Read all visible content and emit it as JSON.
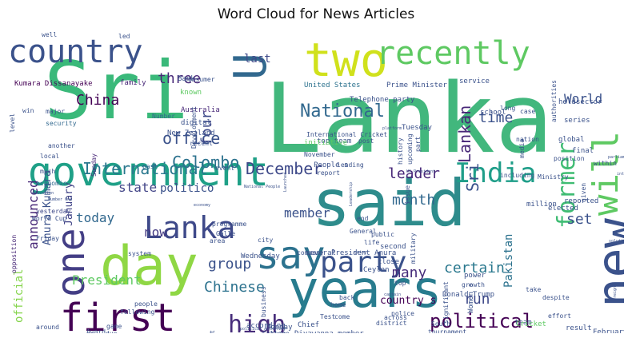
{
  "chart_data": {
    "type": "wordcloud",
    "title": "Word Cloud for News Articles",
    "background": "#ffffff",
    "colormap": "viridis",
    "words": [
      {
        "text": "Sri",
        "size": 100,
        "color": "#3ab97a"
      },
      {
        "text": "Lanka",
        "size": 120,
        "color": "#42b77d"
      },
      {
        "text": "government",
        "size": 50,
        "color": "#1fa087"
      },
      {
        "text": "said",
        "size": 80,
        "color": "#2e8c8c"
      },
      {
        "text": "day",
        "size": 68,
        "color": "#8fd744"
      },
      {
        "text": "years",
        "size": 64,
        "color": "#287c8e"
      },
      {
        "text": "two",
        "size": 58,
        "color": "#d0e11c"
      },
      {
        "text": "new",
        "size": 62,
        "color": "#3b528b"
      },
      {
        "text": "U",
        "size": 56,
        "color": "#31688e"
      },
      {
        "text": "country",
        "size": 40,
        "color": "#3b528b"
      },
      {
        "text": "recently",
        "size": 40,
        "color": "#5ec962"
      },
      {
        "text": "first",
        "size": 48,
        "color": "#440154"
      },
      {
        "text": "one",
        "size": 48,
        "color": "#433e85"
      },
      {
        "text": "say",
        "size": 48,
        "color": "#2c728e"
      },
      {
        "text": "will",
        "size": 44,
        "color": "#5ec962"
      },
      {
        "text": "Lanka",
        "size": 38,
        "color": "#3e4989"
      },
      {
        "text": "India",
        "size": 34,
        "color": "#1f9e89"
      },
      {
        "text": "party",
        "size": 36,
        "color": "#3b528b"
      },
      {
        "text": "former",
        "size": 30,
        "color": "#3fbc73"
      },
      {
        "text": "high",
        "size": 30,
        "color": "#472d7b"
      },
      {
        "text": "National",
        "size": 22,
        "color": "#31688e"
      },
      {
        "text": "political",
        "size": 24,
        "color": "#440154"
      },
      {
        "text": "International",
        "size": 20,
        "color": "#2a788e"
      },
      {
        "text": "December",
        "size": 20,
        "color": "#3e4989"
      },
      {
        "text": "Lankan",
        "size": 20,
        "color": "#482878"
      },
      {
        "text": "office",
        "size": 20,
        "color": "#3b528b"
      },
      {
        "text": "Colombo",
        "size": 20,
        "color": "#2c728e"
      },
      {
        "text": "China",
        "size": 18,
        "color": "#440154"
      },
      {
        "text": "three",
        "size": 18,
        "color": "#482878"
      },
      {
        "text": "four",
        "size": 18,
        "color": "#3e4989"
      },
      {
        "text": "time",
        "size": 18,
        "color": "#3b528b"
      },
      {
        "text": "World",
        "size": 16,
        "color": "#3b528b"
      },
      {
        "text": "last",
        "size": 14,
        "color": "#3e4989"
      },
      {
        "text": "leader",
        "size": 18,
        "color": "#482878"
      },
      {
        "text": "month",
        "size": 18,
        "color": "#31688e"
      },
      {
        "text": "member",
        "size": 16,
        "color": "#3b528b"
      },
      {
        "text": "Sri",
        "size": 20,
        "color": "#3b528b"
      },
      {
        "text": "many",
        "size": 18,
        "color": "#472d7b"
      },
      {
        "text": "certain",
        "size": 18,
        "color": "#2a788e"
      },
      {
        "text": "run",
        "size": 18,
        "color": "#3e4989"
      },
      {
        "text": "set",
        "size": 18,
        "color": "#3b528b"
      },
      {
        "text": "group",
        "size": 18,
        "color": "#3b528b"
      },
      {
        "text": "Chinese",
        "size": 18,
        "color": "#2c728e"
      },
      {
        "text": "President",
        "size": 16,
        "color": "#5ec962"
      },
      {
        "text": "today",
        "size": 16,
        "color": "#31688e"
      },
      {
        "text": "now",
        "size": 16,
        "color": "#443a83"
      },
      {
        "text": "announced",
        "size": 16,
        "color": "#482878"
      },
      {
        "text": "state",
        "size": 16,
        "color": "#414487"
      },
      {
        "text": "politico",
        "size": 14,
        "color": "#3b528b"
      },
      {
        "text": "Pakistan",
        "size": 14,
        "color": "#2c728e"
      },
      {
        "text": "official",
        "size": 14,
        "color": "#84d44b"
      },
      {
        "text": "Anura Kumara",
        "size": 13,
        "color": "#3b528b"
      },
      {
        "text": "January",
        "size": 13,
        "color": "#414487"
      },
      {
        "text": "country s",
        "size": 13,
        "color": "#440154"
      },
      {
        "text": "Kumara Dissanayake",
        "size": 9,
        "color": "#440154"
      },
      {
        "text": "family",
        "size": 9,
        "color": "#482878"
      },
      {
        "text": "major",
        "size": 8,
        "color": "#3b528b"
      },
      {
        "text": "security",
        "size": 8,
        "color": "#31688e"
      },
      {
        "text": "another",
        "size": 8,
        "color": "#3b528b"
      },
      {
        "text": "local",
        "size": 8,
        "color": "#3b528b"
      },
      {
        "text": "much",
        "size": 8,
        "color": "#3b528b"
      },
      {
        "text": "economic",
        "size": 8,
        "color": "#31688e"
      },
      {
        "text": "yesterday",
        "size": 8,
        "color": "#3e4989"
      },
      {
        "text": "World Cup",
        "size": 8,
        "color": "#3b528b"
      },
      {
        "text": "Friday",
        "size": 8,
        "color": "#3b528b"
      },
      {
        "text": "opposition",
        "size": 8,
        "color": "#482878"
      },
      {
        "text": "around",
        "size": 8,
        "color": "#3b528b"
      },
      {
        "text": "Bank",
        "size": 9,
        "color": "#3b528b"
      },
      {
        "text": "known",
        "size": 9,
        "color": "#5ec962"
      },
      {
        "text": "consumer",
        "size": 8,
        "color": "#3b528b"
      },
      {
        "text": "Australia",
        "size": 9,
        "color": "#482878"
      },
      {
        "text": "digital",
        "size": 9,
        "color": "#3b528b"
      },
      {
        "text": "New Zealand",
        "size": 9,
        "color": "#3b528b"
      },
      {
        "text": "Number",
        "size": 8,
        "color": "#31688e"
      },
      {
        "text": "Development",
        "size": 8,
        "color": "#3b528b"
      },
      {
        "text": "past",
        "size": 8,
        "color": "#31688e"
      },
      {
        "text": "Sunday",
        "size": 8,
        "color": "#482878"
      },
      {
        "text": "United States",
        "size": 9,
        "color": "#2c728e"
      },
      {
        "text": "Prime Minister",
        "size": 9,
        "color": "#3b528b"
      },
      {
        "text": "service",
        "size": 9,
        "color": "#3b528b"
      },
      {
        "text": "held",
        "size": 9,
        "color": "#3b528b"
      },
      {
        "text": "sector",
        "size": 9,
        "color": "#3b528b"
      },
      {
        "text": "authorities",
        "size": 8,
        "color": "#3b528b"
      },
      {
        "text": "Telephone party",
        "size": 9,
        "color": "#3b528b"
      },
      {
        "text": "school",
        "size": 9,
        "color": "#3b528b"
      },
      {
        "text": "long",
        "size": 8,
        "color": "#3b528b"
      },
      {
        "text": "case",
        "size": 8,
        "color": "#3b528b"
      },
      {
        "text": "series",
        "size": 9,
        "color": "#3b528b"
      },
      {
        "text": "global",
        "size": 9,
        "color": "#3b528b"
      },
      {
        "text": "final",
        "size": 9,
        "color": "#3b528b"
      },
      {
        "text": "position",
        "size": 8,
        "color": "#3b528b"
      },
      {
        "text": "within",
        "size": 8,
        "color": "#3b528b"
      },
      {
        "text": "given",
        "size": 8,
        "color": "#3b528b"
      },
      {
        "text": "International Cricket",
        "size": 8,
        "color": "#3b528b"
      },
      {
        "text": "top team",
        "size": 9,
        "color": "#3b528b"
      },
      {
        "text": "initiative",
        "size": 9,
        "color": "#5ec962"
      },
      {
        "text": "November",
        "size": 8,
        "color": "#3b528b"
      },
      {
        "text": "People s",
        "size": 9,
        "color": "#3b528b"
      },
      {
        "text": "report",
        "size": 8,
        "color": "#3b528b"
      },
      {
        "text": "post",
        "size": 8,
        "color": "#3b528b"
      },
      {
        "text": "Tuesday",
        "size": 9,
        "color": "#3b528b"
      },
      {
        "text": "part",
        "size": 8,
        "color": "#3b528b"
      },
      {
        "text": "history",
        "size": 8,
        "color": "#3b528b"
      },
      {
        "text": "upcoming",
        "size": 8,
        "color": "#3b528b"
      },
      {
        "text": "nation",
        "size": 8,
        "color": "#3b528b"
      },
      {
        "text": "media",
        "size": 8,
        "color": "#3b528b"
      },
      {
        "text": "including",
        "size": 8,
        "color": "#3b528b"
      },
      {
        "text": "Ministry",
        "size": 8,
        "color": "#3b528b"
      },
      {
        "text": "reported",
        "size": 9,
        "color": "#3b528b"
      },
      {
        "text": "elected",
        "size": 9,
        "color": "#3b528b"
      },
      {
        "text": "million",
        "size": 9,
        "color": "#3b528b"
      },
      {
        "text": "programme",
        "size": 8,
        "color": "#3b528b"
      },
      {
        "text": "Galle",
        "size": 8,
        "color": "#3b528b"
      },
      {
        "text": "area",
        "size": 8,
        "color": "#3b528b"
      },
      {
        "text": "city",
        "size": 8,
        "color": "#3b528b"
      },
      {
        "text": "system",
        "size": 8,
        "color": "#3b528b"
      },
      {
        "text": "Wednesday",
        "size": 9,
        "color": "#3b528b"
      },
      {
        "text": "company",
        "size": 8,
        "color": "#3b528b"
      },
      {
        "text": "several",
        "size": 9,
        "color": "#3b528b"
      },
      {
        "text": "President Anura",
        "size": 9,
        "color": "#3b528b"
      },
      {
        "text": "Ceylon",
        "size": 9,
        "color": "#3b528b"
      },
      {
        "text": "close",
        "size": 9,
        "color": "#3b528b"
      },
      {
        "text": "military",
        "size": 8,
        "color": "#3b528b"
      },
      {
        "text": "second",
        "size": 9,
        "color": "#3b528b"
      },
      {
        "text": "life",
        "size": 8,
        "color": "#3b528b"
      },
      {
        "text": "public",
        "size": 8,
        "color": "#3b528b"
      },
      {
        "text": "General",
        "size": 8,
        "color": "#3b528b"
      },
      {
        "text": "end",
        "size": 8,
        "color": "#3b528b"
      },
      {
        "text": "issue",
        "size": 8,
        "color": "#3b528b"
      },
      {
        "text": "top",
        "size": 8,
        "color": "#3b528b"
      },
      {
        "text": "growth",
        "size": 8,
        "color": "#3b528b"
      },
      {
        "text": "power",
        "size": 9,
        "color": "#3b528b"
      },
      {
        "text": "Donald Trump",
        "size": 9,
        "color": "#3b528b"
      },
      {
        "text": "Women s",
        "size": 9,
        "color": "#3b528b"
      },
      {
        "text": "take",
        "size": 8,
        "color": "#3b528b"
      },
      {
        "text": "despite",
        "size": 8,
        "color": "#3b528b"
      },
      {
        "text": "effort",
        "size": 8,
        "color": "#3b528b"
      },
      {
        "text": "team",
        "size": 9,
        "color": "#3b528b"
      },
      {
        "text": "result",
        "size": 9,
        "color": "#3b528b"
      },
      {
        "text": "February",
        "size": 9,
        "color": "#3b528b"
      },
      {
        "text": "week",
        "size": 9,
        "color": "#3b528b"
      },
      {
        "text": "financial",
        "size": 9,
        "color": "#3b528b"
      },
      {
        "text": "reportedly",
        "size": 9,
        "color": "#3b528b"
      },
      {
        "text": "Cricket",
        "size": 9,
        "color": "#5ec962"
      },
      {
        "text": "South",
        "size": 8,
        "color": "#3b528b"
      },
      {
        "text": "tournament",
        "size": 8,
        "color": "#3b528b"
      },
      {
        "text": "significant",
        "size": 8,
        "color": "#3b528b"
      },
      {
        "text": "district",
        "size": 8,
        "color": "#3b528b"
      },
      {
        "text": "across",
        "size": 8,
        "color": "#3b528b"
      },
      {
        "text": "police",
        "size": 8,
        "color": "#3b528b"
      },
      {
        "text": "home",
        "size": 8,
        "color": "#3b528b"
      },
      {
        "text": "back",
        "size": 8,
        "color": "#3b528b"
      },
      {
        "text": "come",
        "size": 8,
        "color": "#3b528b"
      },
      {
        "text": "Test",
        "size": 8,
        "color": "#3b528b"
      },
      {
        "text": "Chief",
        "size": 9,
        "color": "#3b528b"
      },
      {
        "text": "business",
        "size": 8,
        "color": "#3b528b"
      },
      {
        "text": "according",
        "size": 9,
        "color": "#3b528b"
      },
      {
        "text": "Monday",
        "size": 9,
        "color": "#3b528b"
      },
      {
        "text": "College",
        "size": 8,
        "color": "#3b528b"
      },
      {
        "text": "Diyawanna member",
        "size": 9,
        "color": "#3b528b"
      },
      {
        "text": "made",
        "size": 8,
        "color": "#3b528b"
      },
      {
        "text": "Pohottuwa",
        "size": 9,
        "color": "#5ec962"
      },
      {
        "text": "visit",
        "size": 8,
        "color": "#3b528b"
      },
      {
        "text": "Indian",
        "size": 8,
        "color": "#3b528b"
      },
      {
        "text": "people",
        "size": 8,
        "color": "#3b528b"
      },
      {
        "text": "following",
        "size": 8,
        "color": "#3b528b"
      },
      {
        "text": "game",
        "size": 8,
        "color": "#3b528b"
      },
      {
        "text": "due",
        "size": 8,
        "color": "#3b528b"
      },
      {
        "text": "Award",
        "size": 8,
        "color": "#3b528b"
      },
      {
        "text": "win",
        "size": 8,
        "color": "#3b528b"
      },
      {
        "text": "level",
        "size": 8,
        "color": "#3b528b"
      },
      {
        "text": "recent",
        "size": 8,
        "color": "#3b528b"
      },
      {
        "text": "event",
        "size": 8,
        "color": "#3b528b"
      },
      {
        "text": "well",
        "size": 8,
        "color": "#3b528b"
      },
      {
        "text": "led",
        "size": 8,
        "color": "#3b528b"
      },
      {
        "text": "leading",
        "size": 8,
        "color": "#3b528b"
      },
      {
        "text": "National People",
        "size": 5,
        "color": "#3b528b"
      },
      {
        "text": "economy",
        "size": 5,
        "color": "#3b528b"
      },
      {
        "text": "Launched",
        "size": 5,
        "color": "#3b528b"
      },
      {
        "text": "US President",
        "size": 5,
        "color": "#3b528b"
      },
      {
        "text": "Leadership",
        "size": 5,
        "color": "#3b528b"
      },
      {
        "text": "Number One",
        "size": 5,
        "color": "#3b528b"
      },
      {
        "text": "education",
        "size": 5,
        "color": "#3b528b"
      },
      {
        "text": "political Authority",
        "size": 5,
        "color": "#3b528b"
      },
      {
        "text": "solution",
        "size": 5,
        "color": "#3b528b"
      },
      {
        "text": "Foreign",
        "size": 5,
        "color": "#3b528b"
      },
      {
        "text": "parliament",
        "size": 5,
        "color": "#3b528b"
      },
      {
        "text": "interest",
        "size": 5,
        "color": "#3b528b"
      },
      {
        "text": "platform",
        "size": 5,
        "color": "#3b528b"
      },
      {
        "text": "going",
        "size": 5,
        "color": "#3b528b"
      },
      {
        "text": "captain",
        "size": 5,
        "color": "#3b528b"
      }
    ]
  }
}
